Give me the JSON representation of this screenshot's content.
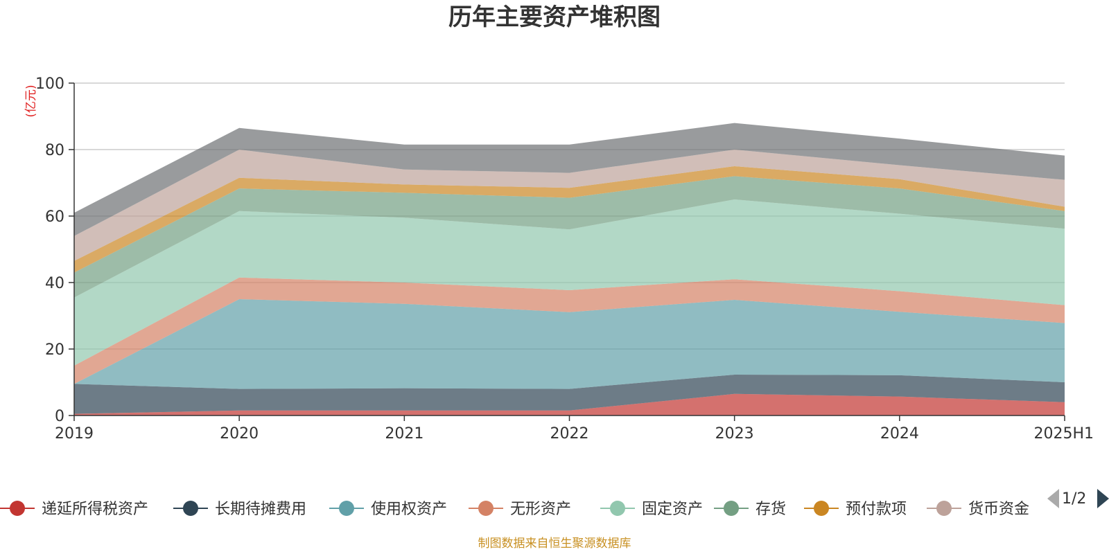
{
  "chart_data": {
    "type": "area",
    "stacked": true,
    "title": "历年主要资产堆积图",
    "unit": "(亿元)",
    "categories": [
      "2019",
      "2020",
      "2021",
      "2022",
      "2023",
      "2024",
      "2025H1"
    ],
    "ylim": [
      0,
      100
    ],
    "yticks": [
      0,
      20,
      40,
      60,
      80,
      100
    ],
    "grid": true,
    "legend_position": "bottom",
    "legend_page": "1/2",
    "series": [
      {
        "name": "递延所得税资产",
        "color": "#c23531",
        "values": [
          0.5,
          1.5,
          1.5,
          1.5,
          6.5,
          5.7,
          4.0
        ]
      },
      {
        "name": "长期待摊费用",
        "color": "#2f4554",
        "values": [
          9.0,
          6.5,
          6.7,
          6.5,
          5.8,
          6.4,
          6.0
        ]
      },
      {
        "name": "使用权资产",
        "color": "#61a0a8",
        "values": [
          0.0,
          27.0,
          25.4,
          23.1,
          22.5,
          19.1,
          17.8
        ]
      },
      {
        "name": "无形资产",
        "color": "#d48265",
        "values": [
          5.5,
          6.5,
          6.4,
          6.6,
          6.2,
          6.2,
          5.4
        ]
      },
      {
        "name": "固定资产",
        "color": "#91c7ae",
        "values": [
          20.5,
          20.0,
          19.5,
          18.3,
          24.0,
          23.3,
          23.0
        ]
      },
      {
        "name": "存货",
        "color": "#749f83",
        "values": [
          7.5,
          6.8,
          7.5,
          9.5,
          7.0,
          7.6,
          5.3
        ]
      },
      {
        "name": "预付款项",
        "color": "#ca8622",
        "values": [
          3.5,
          3.2,
          2.5,
          3.0,
          3.0,
          2.8,
          1.3
        ]
      },
      {
        "name": "货币资金",
        "color": "#bda29a",
        "values": [
          7.5,
          8.5,
          4.5,
          4.5,
          5.0,
          4.2,
          8.1
        ]
      },
      {
        "name": "",
        "color": "#6e7074",
        "values": [
          7.0,
          6.5,
          7.5,
          8.5,
          8.0,
          8.0,
          7.3
        ]
      }
    ]
  },
  "source_note": "制图数据来自恒生聚源数据库"
}
